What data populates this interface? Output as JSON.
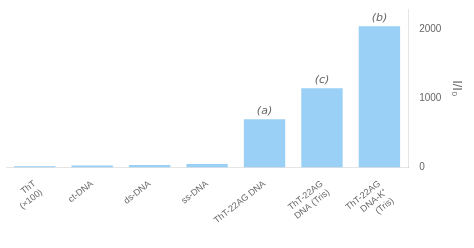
{
  "chart_data": {
    "type": "bar",
    "categories": [
      "ThT\n(×100)",
      "ct-DNA",
      "ds-DNA",
      "ss-DNA",
      "ThT-22AG DNA",
      "ThT-22AG\nDNA (Tris)",
      "ThT-22AG\nDNA-K⁺\n(Tris)"
    ],
    "values": [
      18,
      30,
      35,
      50,
      700,
      1150,
      2050
    ],
    "annotations": [
      {
        "category": "ThT-22AG DNA",
        "text": "(a)"
      },
      {
        "category": "ThT-22AG\nDNA (Tris)",
        "text": "(c)"
      },
      {
        "category": "ThT-22AG\nDNA-K⁺\n(Tris)",
        "text": "(b)"
      }
    ],
    "ylabel": "I/I₀",
    "ylim": [
      0,
      2300
    ],
    "yticks": [
      0,
      1000,
      2000
    ],
    "grid": false
  }
}
